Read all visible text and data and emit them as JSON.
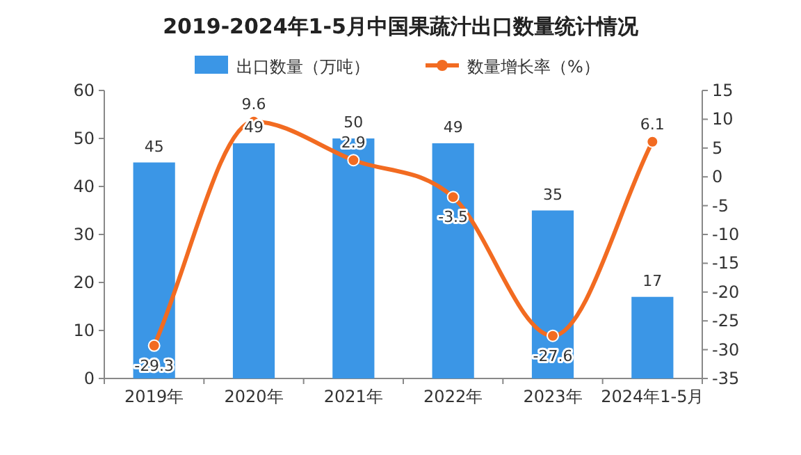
{
  "chart_data": {
    "type": "bar",
    "title": "2019-2024年1-5月中国果蔬汁出口数量统计情况",
    "categories": [
      "2019年",
      "2020年",
      "2021年",
      "2022年",
      "2023年",
      "2024年1-5月"
    ],
    "series": [
      {
        "name": "出口数量（万吨）",
        "color": "#3b96e6",
        "values": [
          45,
          49,
          50,
          49,
          35,
          17
        ]
      },
      {
        "name": "数量增长率（%）",
        "type": "line",
        "axis": "y2",
        "color": "#f26b21",
        "values": [
          -29.3,
          9.6,
          2.9,
          -3.5,
          -27.6,
          6.1
        ]
      }
    ],
    "ylim": [
      0,
      60
    ],
    "yticks": [
      0,
      10,
      20,
      30,
      40,
      50,
      60
    ],
    "y2lim": [
      -35,
      15
    ],
    "y2ticks": [
      -35,
      -30,
      -25,
      -20,
      -15,
      -10,
      -5,
      0,
      5,
      10,
      15
    ],
    "data_labels": true,
    "legend": "top",
    "marker": "circle"
  }
}
